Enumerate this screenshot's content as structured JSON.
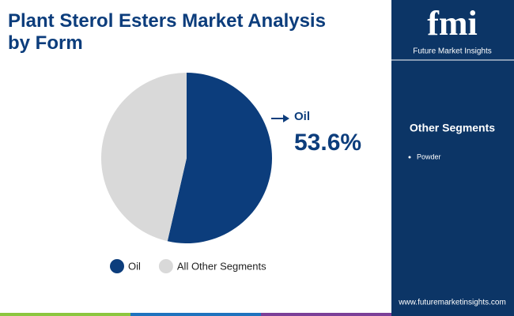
{
  "chart_data": {
    "type": "pie",
    "title": "Plant Sterol Esters Market Analysis by Form",
    "categories": [
      "Oil",
      "All Other Segments"
    ],
    "values": [
      53.6,
      46.4
    ],
    "value_labels": [
      "53.6%",
      null
    ],
    "colors": [
      "#0c3d7c",
      "#d9d9d9"
    ],
    "legend": "bottom"
  },
  "brand": {
    "logo": "fmi",
    "name": "Future Market Insights",
    "url": "www.futuremarketinsights.com"
  },
  "sidebar": {
    "heading": "Other Segments",
    "items": [
      "Powder"
    ]
  }
}
